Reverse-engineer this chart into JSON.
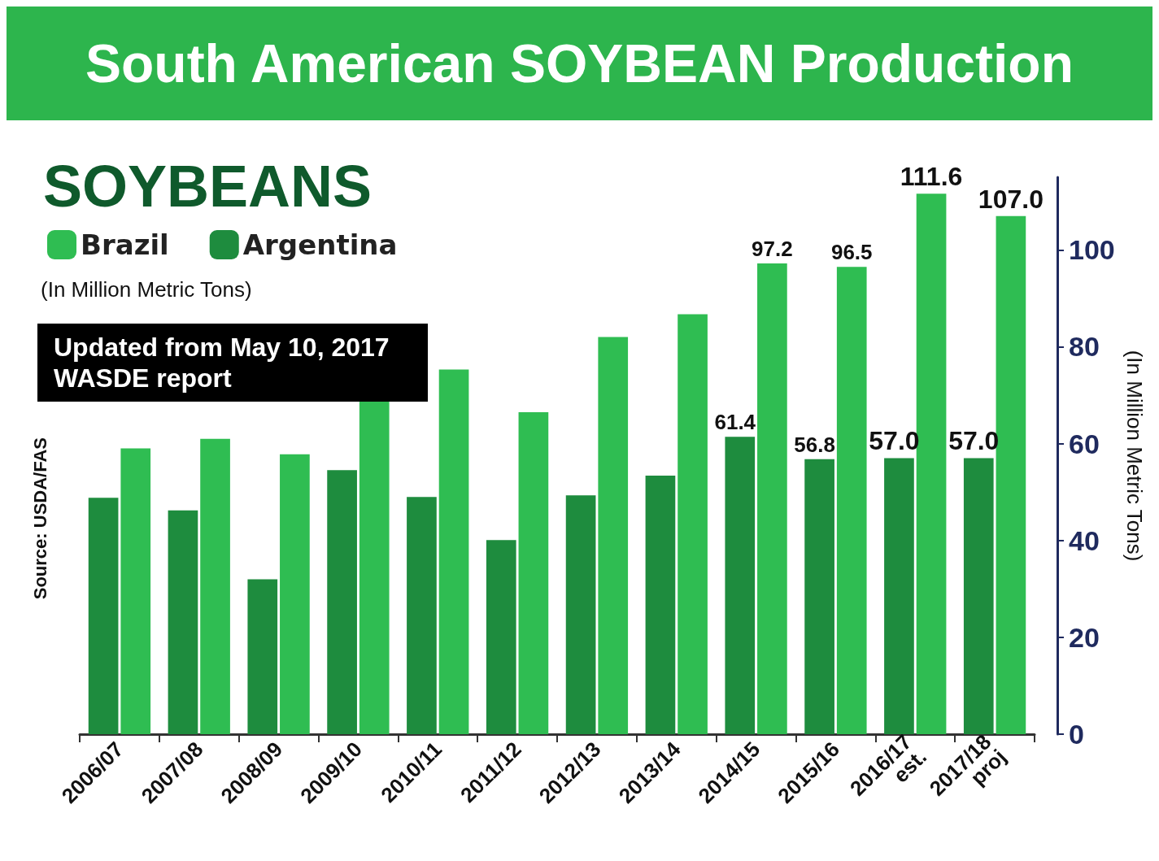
{
  "chart_data": {
    "type": "bar",
    "title": "South American SOYBEAN Production",
    "subtitle": "SOYBEANS",
    "ylabel": "(In Million Metric Tons)",
    "annotations": [
      "(In Million Metric Tons)",
      "Updated from  May 10, 2017 WASDE report",
      "Source: USDA/FAS"
    ],
    "categories": [
      "2006/07",
      "2007/08",
      "2008/09",
      "2009/10",
      "2010/11",
      "2011/12",
      "2012/13",
      "2013/14",
      "2014/15",
      "2015/16",
      "2016/17 est.",
      "2017/18 proj"
    ],
    "series": [
      {
        "name": "Argentina",
        "color": "#1e8c3e",
        "values": [
          48.8,
          46.2,
          32.0,
          54.5,
          49.0,
          40.1,
          49.3,
          53.4,
          61.4,
          56.8,
          57.0,
          57.0
        ],
        "value_labels": [
          null,
          null,
          null,
          null,
          null,
          null,
          null,
          null,
          "61.4",
          "56.8",
          "57.0",
          "57.0"
        ]
      },
      {
        "name": "Brazil",
        "color": "#2fbd52",
        "values": [
          59.0,
          61.0,
          57.8,
          69.0,
          75.3,
          66.5,
          82.0,
          86.7,
          97.2,
          96.5,
          111.6,
          107.0
        ],
        "value_labels": [
          null,
          null,
          null,
          null,
          null,
          null,
          null,
          null,
          "97.2",
          "96.5",
          "111.6",
          "107.0"
        ]
      }
    ],
    "ylim": [
      0,
      115
    ],
    "yticks": [
      0,
      20,
      40,
      60,
      80,
      100
    ],
    "grid": false,
    "legend": "top left"
  }
}
